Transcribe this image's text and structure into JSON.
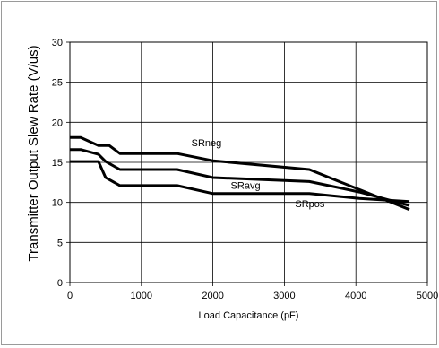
{
  "chart_data": {
    "type": "line",
    "title": "",
    "xlabel": "Load Capacitance (pF)",
    "ylabel": "Transmitter Output Slew Rate (V/us)",
    "xlim": [
      0,
      5000
    ],
    "ylim": [
      0,
      30
    ],
    "xticks": [
      0,
      1000,
      2000,
      3000,
      4000,
      5000
    ],
    "yticks": [
      0,
      5,
      10,
      15,
      20,
      25,
      30
    ],
    "grid": true,
    "legend": "none",
    "line_color": "#000000",
    "grid_color": "#000000",
    "series": [
      {
        "name": "SRneg",
        "label_at": [
          1700,
          17
        ],
        "points": [
          [
            0,
            18.1
          ],
          [
            150,
            18.1
          ],
          [
            400,
            17.1
          ],
          [
            550,
            17.1
          ],
          [
            700,
            16.1
          ],
          [
            1500,
            16.1
          ],
          [
            2000,
            15.2
          ],
          [
            3350,
            14.1
          ],
          [
            4050,
            11.6
          ],
          [
            4750,
            9.1
          ]
        ]
      },
      {
        "name": "SRavg",
        "label_at": [
          2250,
          11.7
        ],
        "points": [
          [
            0,
            16.6
          ],
          [
            150,
            16.6
          ],
          [
            400,
            16.0
          ],
          [
            500,
            15.1
          ],
          [
            700,
            14.1
          ],
          [
            1500,
            14.1
          ],
          [
            2000,
            13.1
          ],
          [
            3350,
            12.6
          ],
          [
            4050,
            11.3
          ],
          [
            4750,
            9.6
          ]
        ]
      },
      {
        "name": "SRpos",
        "label_at": [
          3150,
          9.4
        ],
        "points": [
          [
            0,
            15.1
          ],
          [
            400,
            15.1
          ],
          [
            500,
            13.1
          ],
          [
            700,
            12.1
          ],
          [
            1500,
            12.1
          ],
          [
            2000,
            11.1
          ],
          [
            3350,
            11.1
          ],
          [
            4050,
            10.5
          ],
          [
            4750,
            10.1
          ]
        ]
      }
    ]
  }
}
